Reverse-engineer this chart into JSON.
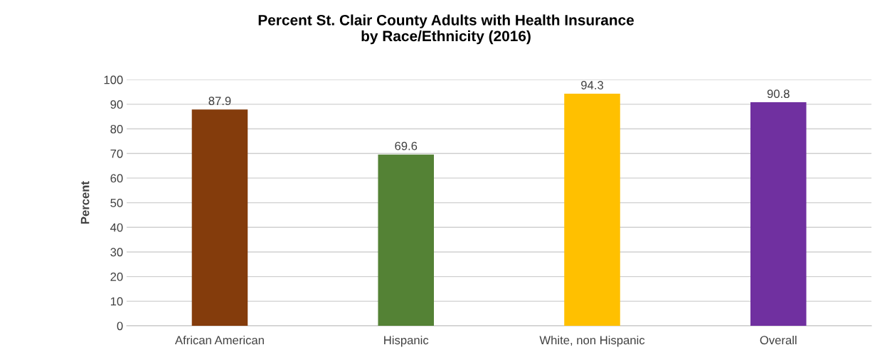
{
  "chart_data": {
    "type": "bar",
    "title": "Percent St. Clair County Adults with Health Insurance\nby Race/Ethnicity (2016)",
    "ylabel": "Percent",
    "categories": [
      "African American",
      "Hispanic",
      "White, non Hispanic",
      "Overall"
    ],
    "values": [
      87.9,
      69.6,
      94.3,
      90.8
    ],
    "colors": [
      "#843c0c",
      "#548235",
      "#ffc000",
      "#7030a0"
    ],
    "ylim": [
      0,
      100
    ],
    "yticks": [
      0,
      10,
      20,
      30,
      40,
      50,
      60,
      70,
      80,
      90,
      100
    ],
    "grid": "y",
    "data_labels": true
  }
}
